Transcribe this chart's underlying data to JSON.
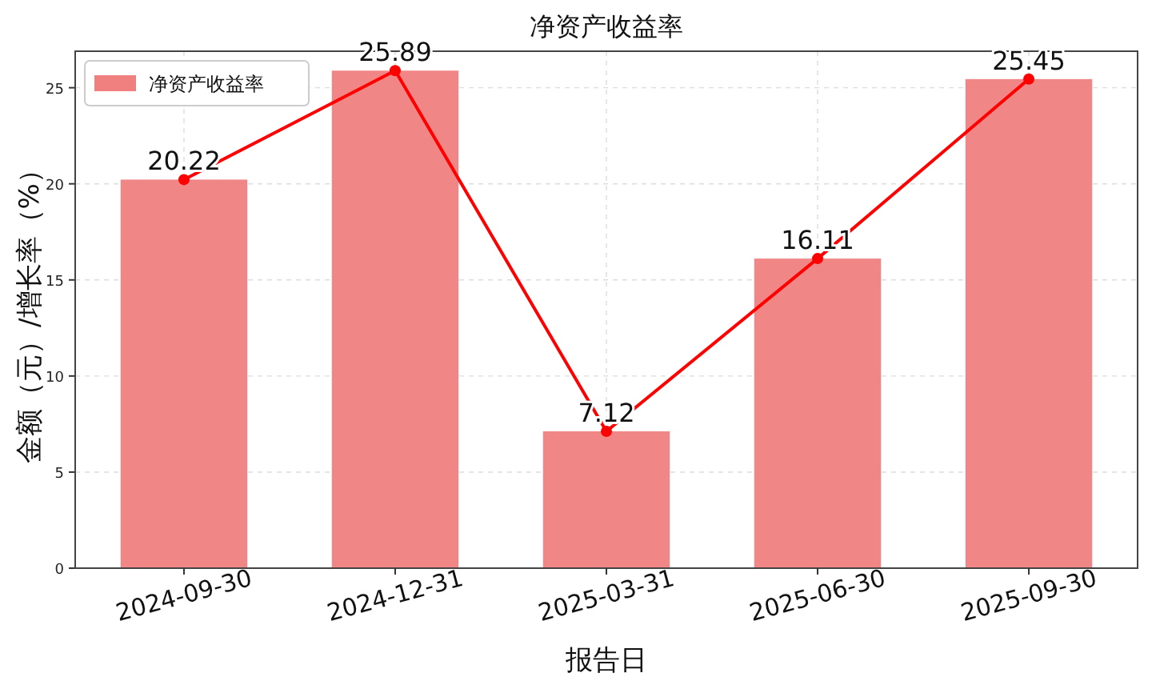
{
  "chart_data": {
    "type": "bar",
    "title": "净资产收益率",
    "xlabel": "报告日",
    "ylabel": "金额（元）/增长率（%）",
    "categories": [
      "2024-09-30",
      "2024-12-31",
      "2025-03-31",
      "2025-06-30",
      "2025-09-30"
    ],
    "series": [
      {
        "name": "净资产收益率",
        "color": "#f08080",
        "values": [
          20.22,
          25.89,
          7.12,
          16.11,
          25.45
        ],
        "value_labels": [
          "20.22",
          "25.89",
          "7.12",
          "16.11",
          "25.45"
        ]
      },
      {
        "type": "line",
        "color": "#ff0000",
        "marker": "circle",
        "values": [
          20.22,
          25.89,
          7.12,
          16.11,
          25.45
        ]
      }
    ],
    "ylim": [
      0,
      26.9
    ],
    "yticks": [
      0,
      5,
      10,
      15,
      20,
      25
    ],
    "grid": true,
    "legend": "top left"
  }
}
